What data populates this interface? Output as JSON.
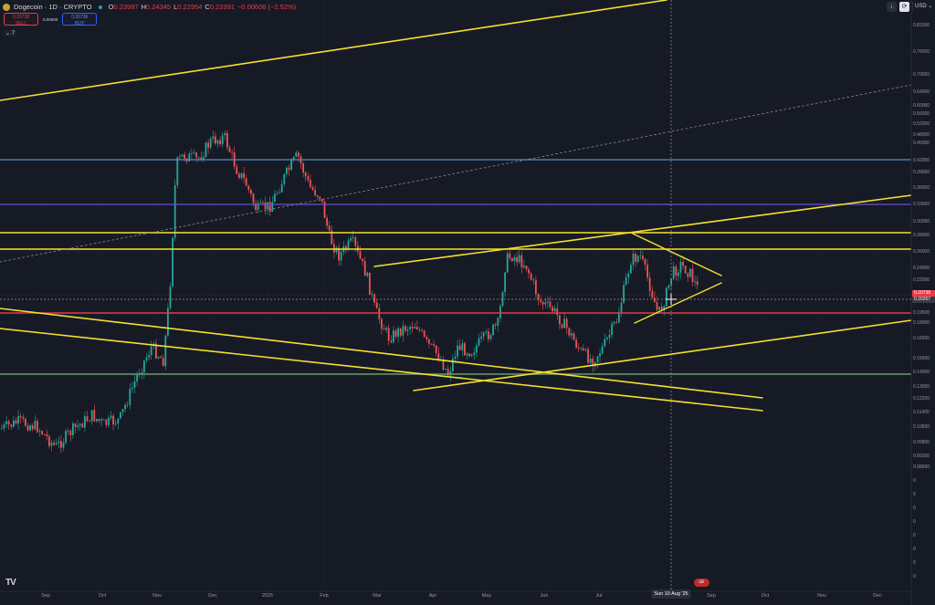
{
  "header": {
    "symbol": "Dogecoin · 1D · CRYPTO",
    "ohlc": [
      {
        "k": "O",
        "v": "0.23997"
      },
      {
        "k": "H",
        "v": "0.24345"
      },
      {
        "k": "L",
        "v": "0.22954"
      },
      {
        "k": "C",
        "v": "0.23391"
      },
      {
        "k": "",
        "v": "−0.00606 (−2.52%)"
      }
    ],
    "sell_price": "0.20738",
    "sell_label": "SELL",
    "spread": "0.00000",
    "buy_price": "0.20736",
    "buy_label": "BUY",
    "indicators_count": "7",
    "currency": "USD",
    "down_arrow": "↓",
    "reset_icon": "⟳"
  },
  "colors": {
    "background": "#161a25",
    "grid": "#1f2330",
    "up": "#26a69a",
    "down": "#ef5350",
    "yellow": "#f5e12d",
    "blue": "#4a90c8",
    "purple": "#6a4fd8",
    "red_line": "#e53946",
    "green_line": "#6a9a72"
  },
  "chart_data": {
    "type": "candlestick",
    "title": "Dogecoin · 1D · CRYPTO",
    "xlabel": "",
    "ylabel": "USD",
    "scale": "log",
    "ylim": [
      0.075,
      0.9
    ],
    "x_ticks": [
      "Sep",
      "Oct",
      "Nov",
      "Dec",
      "2025",
      "Feb",
      "Mar",
      "Apr",
      "May",
      "Jun",
      "Jul",
      "Aug",
      "Sep",
      "Oct",
      "Nov",
      "Dec"
    ],
    "y_ticks": [
      "0.82000",
      "0.76000",
      "0.70000",
      "0.64000",
      "0.60000",
      "0.56000",
      "0.52000",
      "0.48000",
      "0.45000",
      "0.42000",
      "0.39000",
      "0.36000",
      "0.33000",
      "0.30000",
      "0.28000",
      "0.26000",
      "0.24000",
      "0.22500",
      "0.19500",
      "0.18000",
      "0.16500",
      "0.15000",
      "0.14000",
      "0.13000",
      "0.12200",
      "0.11400",
      "0.10600",
      "0.09800",
      "0.09200",
      "0.08600"
    ],
    "price_tags": {
      "last": "0.20738",
      "crosshair": "0.20267"
    },
    "crosshair_date": "Sun 10 Aug '25",
    "price_path_approx": [
      {
        "month": "Sep 2024",
        "price": 0.105
      },
      {
        "month": "Oct 2024",
        "price": 0.11
      },
      {
        "month": "early Nov 2024",
        "price": 0.16
      },
      {
        "month": "mid Nov 2024",
        "price": 0.4
      },
      {
        "month": "Dec 2024",
        "price": 0.46
      },
      {
        "month": "late Dec 2024",
        "price": 0.32
      },
      {
        "month": "Jan 2025",
        "price": 0.4
      },
      {
        "month": "Feb 2025",
        "price": 0.25
      },
      {
        "month": "Mar 2025",
        "price": 0.17
      },
      {
        "month": "Apr 2025",
        "price": 0.14
      },
      {
        "month": "May 2025",
        "price": 0.25
      },
      {
        "month": "Jun 2025",
        "price": 0.16
      },
      {
        "month": "Jul 2025",
        "price": 0.28
      },
      {
        "month": "Aug 2025",
        "price": 0.23
      }
    ],
    "horizontal_levels": [
      {
        "price": 0.42,
        "color": "blue"
      },
      {
        "price": 0.33,
        "color": "purple"
      },
      {
        "price": 0.285,
        "color": "yellow"
      },
      {
        "price": 0.265,
        "color": "yellow"
      },
      {
        "price": 0.19,
        "color": "red"
      },
      {
        "price": 0.138,
        "color": "green"
      }
    ],
    "trendlines": "yellow ascending channel, descending channels, symmetrical triangle Jul–Aug 2025, dotted long-term trendline",
    "legend_position": "top-left",
    "grid": true
  }
}
